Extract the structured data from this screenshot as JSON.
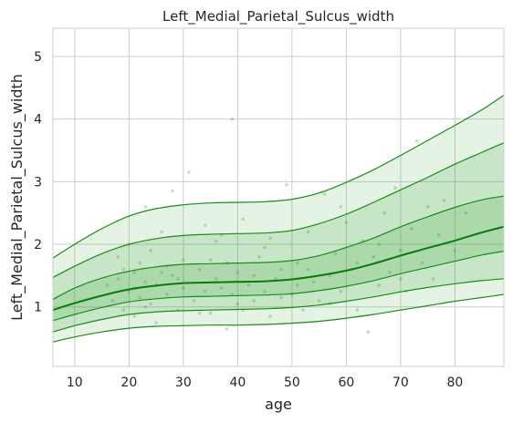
{
  "chart_data": {
    "type": "line",
    "title": "Left_Medial_Parietal_Sulcus_width",
    "xlabel": "age",
    "ylabel": "Left_Medial_Parietal_Sulcus_width",
    "xlim": [
      6,
      89
    ],
    "ylim": [
      0.05,
      5.45
    ],
    "xticks": [
      "10",
      "20",
      "30",
      "40",
      "50",
      "60",
      "70",
      "80"
    ],
    "yticks": [
      "1",
      "2",
      "3",
      "4",
      "5"
    ],
    "grid": true,
    "legend": "none",
    "colors": {
      "line": "#1b8a1b",
      "median": "#0a7a0a",
      "band": "#2ca02c",
      "points": "#3a8a3a",
      "grid": "#cccccc",
      "background": "#ffffff"
    },
    "x": [
      6,
      10,
      15,
      20,
      25,
      30,
      35,
      40,
      45,
      50,
      55,
      60,
      65,
      70,
      75,
      80,
      85,
      89
    ],
    "series": [
      {
        "values": [
          1.78,
          2.0,
          2.25,
          2.45,
          2.57,
          2.63,
          2.66,
          2.67,
          2.68,
          2.72,
          2.82,
          2.99,
          3.19,
          3.42,
          3.66,
          3.9,
          4.15,
          4.38
        ]
      },
      {
        "values": [
          1.47,
          1.65,
          1.85,
          2.0,
          2.09,
          2.14,
          2.16,
          2.17,
          2.18,
          2.22,
          2.33,
          2.48,
          2.67,
          2.87,
          3.07,
          3.28,
          3.47,
          3.62
        ]
      },
      {
        "values": [
          1.12,
          1.3,
          1.46,
          1.57,
          1.64,
          1.68,
          1.69,
          1.7,
          1.71,
          1.74,
          1.82,
          1.95,
          2.1,
          2.28,
          2.44,
          2.59,
          2.71,
          2.77
        ]
      },
      {
        "values": [
          0.95,
          1.06,
          1.18,
          1.28,
          1.34,
          1.38,
          1.39,
          1.4,
          1.41,
          1.44,
          1.5,
          1.58,
          1.69,
          1.82,
          1.94,
          2.06,
          2.19,
          2.28
        ]
      },
      {
        "values": [
          0.78,
          0.88,
          0.99,
          1.08,
          1.13,
          1.16,
          1.17,
          1.18,
          1.19,
          1.21,
          1.26,
          1.33,
          1.42,
          1.53,
          1.63,
          1.73,
          1.83,
          1.89
        ]
      },
      {
        "values": [
          0.6,
          0.7,
          0.8,
          0.88,
          0.92,
          0.94,
          0.95,
          0.96,
          0.97,
          0.99,
          1.03,
          1.09,
          1.16,
          1.24,
          1.31,
          1.37,
          1.42,
          1.45
        ]
      },
      {
        "values": [
          0.44,
          0.52,
          0.6,
          0.66,
          0.69,
          0.7,
          0.71,
          0.71,
          0.72,
          0.74,
          0.77,
          0.82,
          0.88,
          0.95,
          1.02,
          1.09,
          1.15,
          1.2
        ]
      }
    ],
    "scatter_points": [
      [
        17,
        1.1
      ],
      [
        18,
        1.45
      ],
      [
        19,
        0.95
      ],
      [
        19,
        1.6
      ],
      [
        20,
        1.25
      ],
      [
        20,
        2.0
      ],
      [
        21,
        1.3
      ],
      [
        21,
        0.85
      ],
      [
        22,
        1.7
      ],
      [
        22,
        1.15
      ],
      [
        23,
        2.6
      ],
      [
        23,
        1.4
      ],
      [
        24,
        1.05
      ],
      [
        24,
        1.9
      ],
      [
        25,
        1.35
      ],
      [
        25,
        0.75
      ],
      [
        26,
        1.55
      ],
      [
        26,
        2.2
      ],
      [
        27,
        1.2
      ],
      [
        28,
        2.85
      ],
      [
        28,
        1.5
      ],
      [
        29,
        0.95
      ],
      [
        30,
        1.75
      ],
      [
        30,
        1.3
      ],
      [
        31,
        3.15
      ],
      [
        32,
        1.1
      ],
      [
        33,
        1.6
      ],
      [
        34,
        2.3
      ],
      [
        34,
        1.25
      ],
      [
        35,
        0.9
      ],
      [
        36,
        1.45
      ],
      [
        36,
        2.05
      ],
      [
        37,
        1.3
      ],
      [
        38,
        0.65
      ],
      [
        38,
        1.7
      ],
      [
        39,
        4.0
      ],
      [
        39,
        1.2
      ],
      [
        40,
        1.55
      ],
      [
        41,
        0.95
      ],
      [
        41,
        2.4
      ],
      [
        42,
        1.35
      ],
      [
        43,
        1.1
      ],
      [
        44,
        1.8
      ],
      [
        45,
        1.25
      ],
      [
        46,
        2.1
      ],
      [
        46,
        0.85
      ],
      [
        47,
        1.45
      ],
      [
        48,
        1.6
      ],
      [
        49,
        2.95
      ],
      [
        50,
        1.2
      ],
      [
        51,
        1.7
      ],
      [
        52,
        0.95
      ],
      [
        53,
        2.2
      ],
      [
        54,
        1.4
      ],
      [
        55,
        1.1
      ],
      [
        56,
        2.8
      ],
      [
        57,
        1.5
      ],
      [
        58,
        1.85
      ],
      [
        59,
        1.25
      ],
      [
        60,
        2.35
      ],
      [
        61,
        1.6
      ],
      [
        62,
        0.95
      ],
      [
        63,
        2.05
      ],
      [
        64,
        0.6
      ],
      [
        65,
        1.8
      ],
      [
        66,
        1.35
      ],
      [
        67,
        2.5
      ],
      [
        68,
        1.55
      ],
      [
        69,
        2.9
      ],
      [
        70,
        1.9
      ],
      [
        71,
        1.25
      ],
      [
        72,
        2.25
      ],
      [
        73,
        3.65
      ],
      [
        74,
        1.7
      ],
      [
        75,
        2.6
      ],
      [
        76,
        1.45
      ],
      [
        77,
        2.15
      ],
      [
        78,
        2.7
      ],
      [
        80,
        1.9
      ],
      [
        82,
        2.5
      ],
      [
        16,
        1.35
      ],
      [
        18,
        1.8
      ],
      [
        21,
        1.55
      ],
      [
        23,
        1.0
      ],
      [
        27,
        1.65
      ],
      [
        29,
        1.45
      ],
      [
        33,
        0.9
      ],
      [
        35,
        1.75
      ],
      [
        37,
        2.15
      ],
      [
        40,
        1.05
      ],
      [
        43,
        1.5
      ],
      [
        45,
        1.95
      ],
      [
        48,
        1.15
      ],
      [
        51,
        1.35
      ],
      [
        53,
        1.6
      ],
      [
        57,
        1.05
      ],
      [
        59,
        2.6
      ],
      [
        62,
        1.7
      ],
      [
        66,
        2.0
      ],
      [
        70,
        1.45
      ]
    ]
  }
}
